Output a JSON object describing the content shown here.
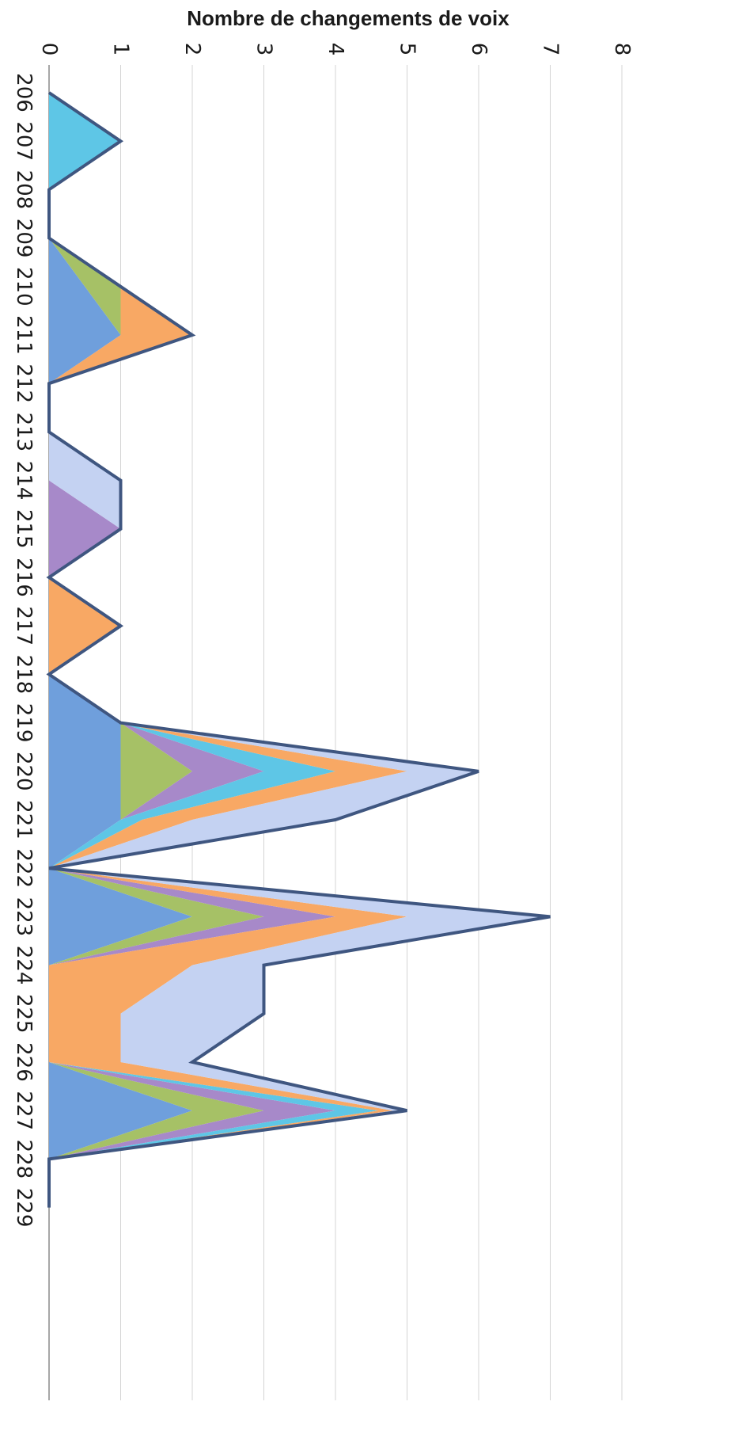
{
  "chart_data": {
    "type": "area",
    "orientation": "rotated-90-clockwise",
    "stacked": true,
    "title": "Nombre de changements de voix",
    "xlabel": "",
    "ylabel": "Nombre de changements de voix",
    "ylim": [
      0,
      8
    ],
    "yticks": [
      "0",
      "1",
      "2",
      "3",
      "4",
      "5",
      "6",
      "7",
      "8"
    ],
    "grid": true,
    "legend": "none",
    "categories": [
      "206",
      "207",
      "208",
      "209",
      "210",
      "211",
      "212",
      "213",
      "214",
      "215",
      "216",
      "217",
      "218",
      "219",
      "220",
      "221",
      "222",
      "223",
      "224",
      "225",
      "226",
      "227",
      "228",
      "229"
    ],
    "series": [
      {
        "color": "#6f9fdc",
        "values": [
          0,
          0,
          0,
          0,
          0.5,
          1,
          0,
          0,
          0,
          0,
          0,
          0,
          0,
          1,
          1,
          1,
          0,
          2,
          0,
          0,
          0,
          2,
          0,
          0
        ]
      },
      {
        "color": "#a6c166",
        "values": [
          0,
          0,
          0,
          0,
          0.5,
          0,
          0,
          0,
          0,
          0,
          0,
          0,
          0,
          0,
          1,
          0,
          0,
          1,
          0,
          0,
          0,
          1,
          0,
          0
        ]
      },
      {
        "color": "#a789c9",
        "values": [
          0,
          0,
          0,
          0,
          0,
          0,
          0,
          0,
          0,
          1,
          0,
          0,
          0,
          0,
          1,
          0,
          0,
          1,
          0,
          0,
          0,
          1,
          0,
          0
        ]
      },
      {
        "color": "#5ec6e6",
        "values": [
          0,
          1,
          0,
          0,
          0,
          0,
          0,
          0,
          0,
          0,
          0,
          0,
          0,
          0,
          1,
          0.3,
          0,
          0,
          0,
          0,
          0,
          0.6,
          0,
          0
        ]
      },
      {
        "color": "#f8a864",
        "values": [
          0,
          0,
          0,
          0,
          0,
          1,
          0,
          0,
          0,
          0,
          0,
          1,
          0,
          0,
          1,
          0.7,
          0,
          1,
          2,
          1,
          1,
          0.2,
          0,
          0
        ]
      },
      {
        "color": "#c4d2f2",
        "values": [
          0,
          0,
          0,
          0,
          0,
          0,
          0,
          0,
          1,
          0,
          0,
          0,
          0,
          0,
          1,
          2,
          0,
          2,
          1,
          2,
          1,
          0.2,
          0,
          0
        ]
      }
    ],
    "totals": [
      0,
      1,
      0,
      0,
      1,
      2,
      0,
      0,
      1,
      1,
      0,
      1,
      0,
      1,
      6,
      4,
      0,
      7,
      3,
      3,
      2,
      5,
      0,
      0
    ],
    "outline_color": "#3f5680"
  }
}
